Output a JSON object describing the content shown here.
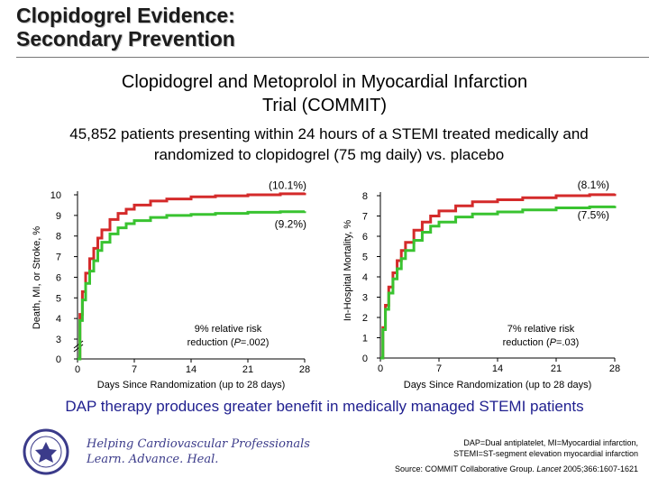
{
  "slide": {
    "title_line1": "Clopidogrel Evidence:",
    "title_line2": "Secondary Prevention",
    "subtitle_line1": "Clopidogrel and Metoprolol in Myocardial Infarction",
    "subtitle_line2": "Trial (COMMIT)",
    "description_line1": "45,852 patients presenting within 24 hours of a STEMI treated medically and",
    "description_line2": "randomized to clopidogrel (75 mg daily) vs. placebo",
    "conclusion": "DAP therapy produces greater benefit in medically managed STEMI patients",
    "footnote_line1": "DAP=Dual antiplatelet, MI=Myocardial infarction,",
    "footnote_line2": "STEMI=ST-segment elevation myocardial infarction",
    "source_prefix": "Source: COMMIT Collaborative Group. ",
    "source_journal": "Lancet",
    "source_suffix": " 2005;366:1607-1621",
    "logo_line1": "Helping Cardiovascular Professionals",
    "logo_line2": "Learn. Advance. Heal.",
    "logo_seal_text": "AMERICAN COLLEGE OF CARDIOLOGY"
  },
  "colors": {
    "placebo": "#d42a2a",
    "clopidogrel": "#39c330",
    "conclusion": "#1f1f8f",
    "logo": "#3b3b8a"
  },
  "chart_data": [
    {
      "type": "line",
      "xlabel": "Days Since Randomization (up to 28 days)",
      "ylabel": "Death, MI, or Stroke, %",
      "xlim": [
        0,
        28
      ],
      "ylim": [
        0,
        10
      ],
      "xticks": [
        "0",
        "7",
        "14",
        "21",
        "28"
      ],
      "yticks": [
        "0",
        "3",
        "4",
        "5",
        "6",
        "7",
        "8",
        "9",
        "10"
      ],
      "axis_break": true,
      "annotation_line1": "9% relative risk",
      "annotation_line2_pre": "reduction (",
      "annotation_p": "P",
      "annotation_line2_post": "=.002)",
      "series": [
        {
          "label": "(10.1%)",
          "x": [
            0,
            0.3,
            0.6,
            1,
            1.5,
            2,
            2.5,
            3,
            4,
            5,
            6,
            7,
            9,
            11,
            14,
            17,
            21,
            25,
            28
          ],
          "values": [
            0,
            4.2,
            5.3,
            6.2,
            6.9,
            7.4,
            7.9,
            8.3,
            8.8,
            9.1,
            9.3,
            9.5,
            9.7,
            9.8,
            9.9,
            9.95,
            10.0,
            10.05,
            10.1
          ]
        },
        {
          "label": "(9.2%)",
          "x": [
            0,
            0.3,
            0.6,
            1,
            1.5,
            2,
            2.5,
            3,
            4,
            5,
            6,
            7,
            9,
            11,
            14,
            17,
            21,
            25,
            28
          ],
          "values": [
            0,
            3.9,
            4.9,
            5.7,
            6.3,
            6.8,
            7.3,
            7.7,
            8.1,
            8.4,
            8.6,
            8.75,
            8.9,
            9.0,
            9.05,
            9.1,
            9.15,
            9.18,
            9.2
          ]
        }
      ]
    },
    {
      "type": "line",
      "xlabel": "Days Since Randomization (up to 28 days)",
      "ylabel": "In-Hospital Mortality, %",
      "xlim": [
        0,
        28
      ],
      "ylim": [
        0,
        8
      ],
      "xticks": [
        "0",
        "7",
        "14",
        "21",
        "28"
      ],
      "yticks": [
        "0",
        "1",
        "2",
        "3",
        "4",
        "5",
        "6",
        "7",
        "8"
      ],
      "axis_break": false,
      "annotation_line1": "7% relative risk",
      "annotation_line2_pre": "reduction (",
      "annotation_p": "P",
      "annotation_line2_post": "=.03)",
      "series": [
        {
          "label": "(8.1%)",
          "x": [
            0,
            0.3,
            0.6,
            1,
            1.5,
            2,
            2.5,
            3,
            4,
            5,
            6,
            7,
            9,
            11,
            14,
            17,
            21,
            25,
            28
          ],
          "values": [
            0,
            1.5,
            2.6,
            3.5,
            4.2,
            4.8,
            5.3,
            5.7,
            6.3,
            6.7,
            7.0,
            7.25,
            7.5,
            7.7,
            7.8,
            7.9,
            8.0,
            8.05,
            8.1
          ]
        },
        {
          "label": "(7.5%)",
          "x": [
            0,
            0.3,
            0.6,
            1,
            1.5,
            2,
            2.5,
            3,
            4,
            5,
            6,
            7,
            9,
            11,
            14,
            17,
            21,
            25,
            28
          ],
          "values": [
            0,
            1.4,
            2.4,
            3.2,
            3.9,
            4.4,
            4.9,
            5.3,
            5.8,
            6.2,
            6.5,
            6.7,
            6.95,
            7.1,
            7.2,
            7.3,
            7.4,
            7.45,
            7.5
          ]
        }
      ]
    }
  ]
}
